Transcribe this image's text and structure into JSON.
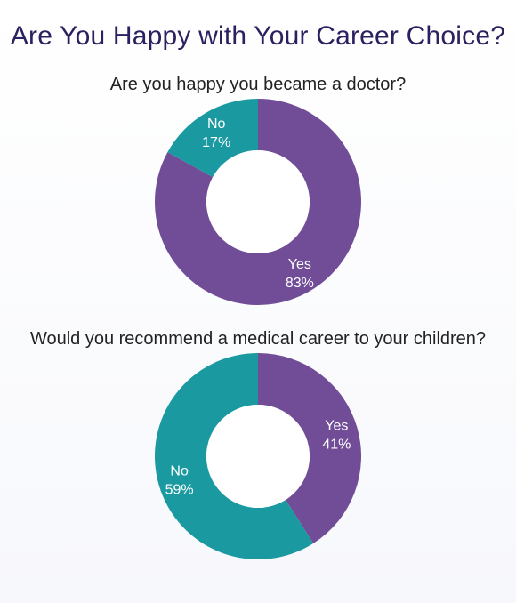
{
  "page": {
    "title": "Are You Happy with Your Career Choice?"
  },
  "chart_data": [
    {
      "type": "pie",
      "title": "Are you happy you became a doctor?",
      "categories": [
        "Yes",
        "No"
      ],
      "values": [
        83,
        17
      ],
      "value_labels": [
        "83%",
        "17%"
      ],
      "colors": [
        "#714d98",
        "#1a9aa0"
      ]
    },
    {
      "type": "pie",
      "title": "Would you recommend a medical career to your children?",
      "categories": [
        "Yes",
        "No"
      ],
      "values": [
        41,
        59
      ],
      "value_labels": [
        "41%",
        "59%"
      ],
      "colors": [
        "#714d98",
        "#1a9aa0"
      ]
    }
  ]
}
